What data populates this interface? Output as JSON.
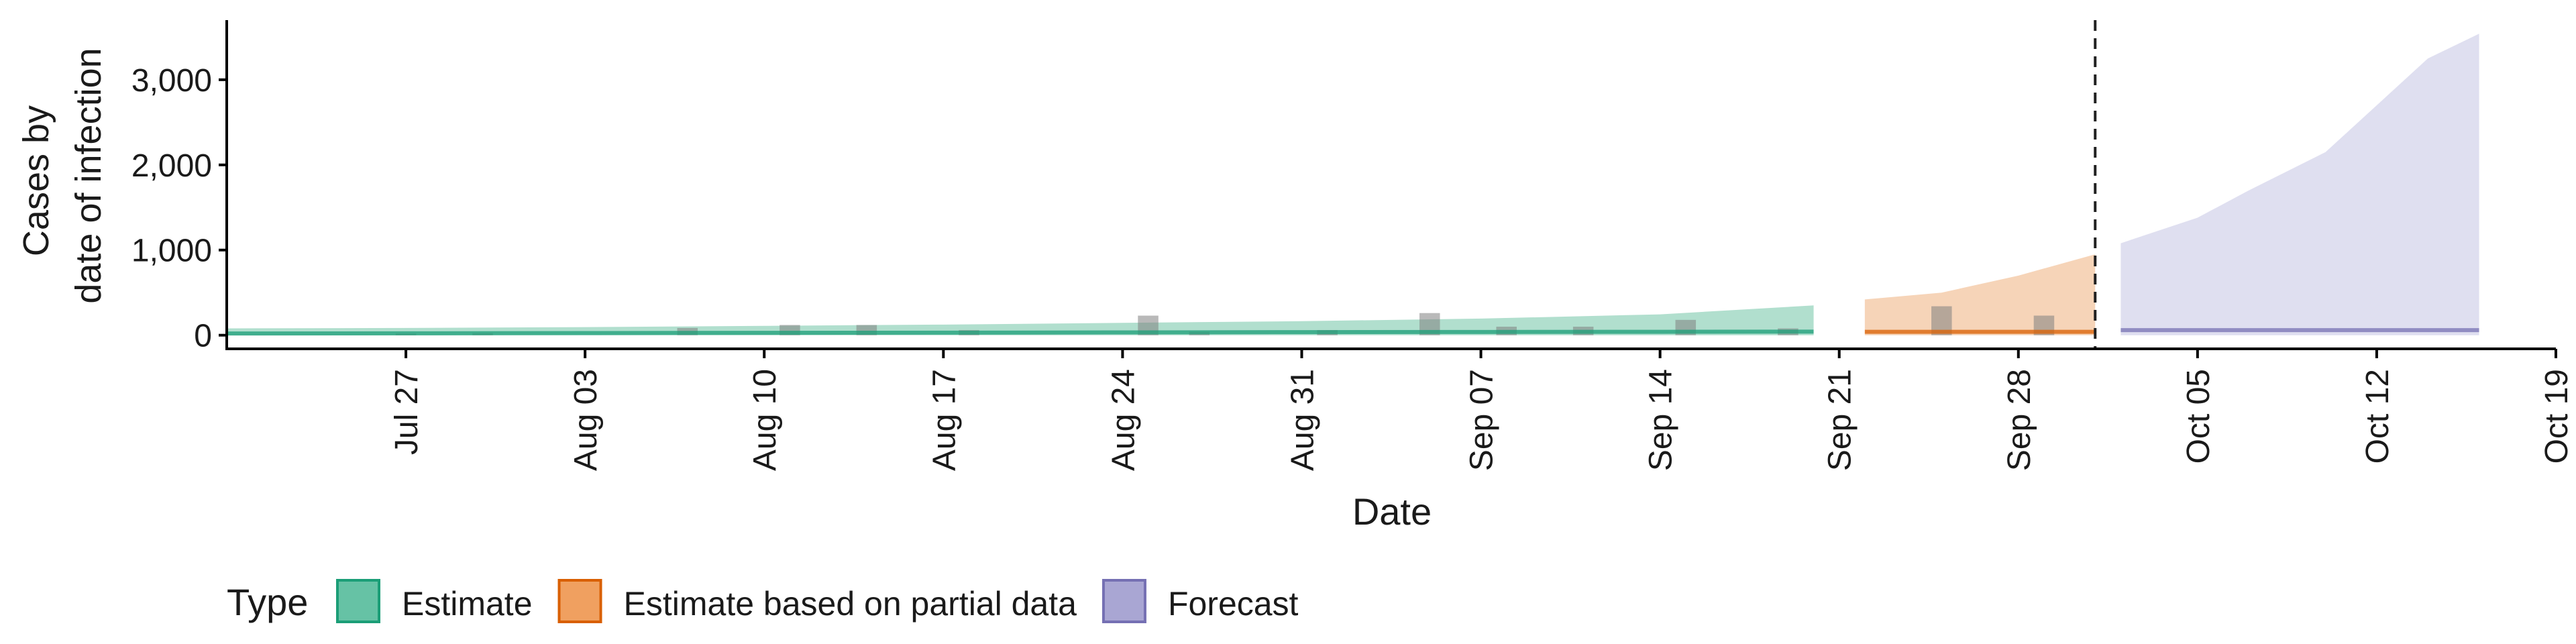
{
  "chart_data": {
    "type": "area",
    "title": "",
    "xlabel": "Date",
    "ylabel_lines": [
      "Cases by",
      "date of infection"
    ],
    "x_ticks": [
      "Jul 27",
      "Aug 03",
      "Aug 10",
      "Aug 17",
      "Aug 24",
      "Aug 31",
      "Sep 07",
      "Sep 14",
      "Sep 21",
      "Sep 28",
      "Oct 05",
      "Oct 12",
      "Oct 19"
    ],
    "y_ticks": [
      0,
      1000,
      2000,
      3000
    ],
    "y_tick_labels": [
      "0",
      "1,000",
      "2,000",
      "3,000"
    ],
    "ylim": [
      -160,
      3700
    ],
    "x_range": [
      "2020-07-20",
      "2020-10-19"
    ],
    "forecast_start_marker": "2020-10-01",
    "legend": {
      "title": "Type",
      "placement": "bottom",
      "entries": [
        {
          "label": "Estimate",
          "fill": "#66c2a5",
          "stroke": "#1b9e77"
        },
        {
          "label": "Estimate based on partial data",
          "fill": "#f0a060",
          "stroke": "#d95f02"
        },
        {
          "label": "Forecast",
          "fill": "#a9a6d3",
          "stroke": "#7570b3"
        }
      ]
    },
    "series": [
      {
        "name": "Estimate",
        "color": "#1b9e77",
        "band_fill": "#a8dcc9",
        "points": [
          {
            "date": "2020-07-20",
            "median": 20,
            "lower": 0,
            "upper": 80
          },
          {
            "date": "2020-07-27",
            "median": 22,
            "lower": 0,
            "upper": 85
          },
          {
            "date": "2020-08-03",
            "median": 25,
            "lower": 0,
            "upper": 95
          },
          {
            "date": "2020-08-10",
            "median": 28,
            "lower": 0,
            "upper": 110
          },
          {
            "date": "2020-08-17",
            "median": 30,
            "lower": 0,
            "upper": 125
          },
          {
            "date": "2020-08-24",
            "median": 33,
            "lower": 0,
            "upper": 145
          },
          {
            "date": "2020-08-31",
            "median": 36,
            "lower": 0,
            "upper": 165
          },
          {
            "date": "2020-09-07",
            "median": 38,
            "lower": 0,
            "upper": 195
          },
          {
            "date": "2020-09-14",
            "median": 40,
            "lower": 0,
            "upper": 245
          },
          {
            "date": "2020-09-20",
            "median": 42,
            "lower": 0,
            "upper": 350
          }
        ]
      },
      {
        "name": "Estimate based on partial data",
        "color": "#d95f02",
        "band_fill": "#f5cfb0",
        "points": [
          {
            "date": "2020-09-22",
            "median": 40,
            "lower": 0,
            "upper": 420
          },
          {
            "date": "2020-09-25",
            "median": 40,
            "lower": 0,
            "upper": 500
          },
          {
            "date": "2020-09-28",
            "median": 40,
            "lower": 0,
            "upper": 700
          },
          {
            "date": "2020-10-01",
            "median": 40,
            "lower": 0,
            "upper": 950
          }
        ]
      },
      {
        "name": "Forecast",
        "color": "#7570b3",
        "band_fill": "#dcdbee",
        "points": [
          {
            "date": "2020-10-02",
            "median": 60,
            "lower": 0,
            "upper": 1080
          },
          {
            "date": "2020-10-05",
            "median": 60,
            "lower": 0,
            "upper": 1380
          },
          {
            "date": "2020-10-07",
            "median": 60,
            "lower": 0,
            "upper": 1700
          },
          {
            "date": "2020-10-10",
            "median": 60,
            "lower": 0,
            "upper": 2150
          },
          {
            "date": "2020-10-12",
            "median": 60,
            "lower": 0,
            "upper": 2700
          },
          {
            "date": "2020-10-14",
            "median": 60,
            "lower": 0,
            "upper": 3250
          },
          {
            "date": "2020-10-16",
            "median": 60,
            "lower": 0,
            "upper": 3540
          }
        ]
      }
    ],
    "reported_cases": [
      {
        "date": "2020-07-27",
        "value": 20
      },
      {
        "date": "2020-07-30",
        "value": 25
      },
      {
        "date": "2020-08-07",
        "value": 85
      },
      {
        "date": "2020-08-11",
        "value": 120
      },
      {
        "date": "2020-08-14",
        "value": 120
      },
      {
        "date": "2020-08-18",
        "value": 60
      },
      {
        "date": "2020-08-25",
        "value": 230
      },
      {
        "date": "2020-08-27",
        "value": 40
      },
      {
        "date": "2020-09-01",
        "value": 60
      },
      {
        "date": "2020-09-05",
        "value": 260
      },
      {
        "date": "2020-09-08",
        "value": 100
      },
      {
        "date": "2020-09-11",
        "value": 100
      },
      {
        "date": "2020-09-15",
        "value": 180
      },
      {
        "date": "2020-09-19",
        "value": 80
      },
      {
        "date": "2020-09-25",
        "value": 340
      },
      {
        "date": "2020-09-29",
        "value": 230
      }
    ]
  }
}
